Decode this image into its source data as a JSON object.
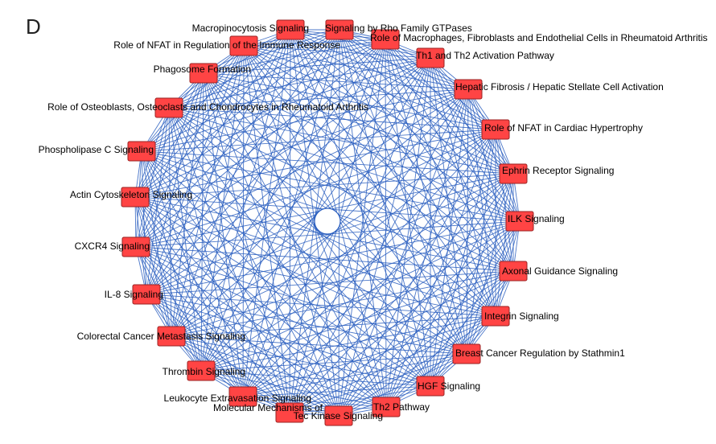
{
  "figure": {
    "panel_letter": "D"
  },
  "colors": {
    "node_fill": "#ff4444",
    "node_stroke": "#9a2222",
    "edge": "#2b5fbf"
  },
  "nodes": [
    {
      "id": "n0",
      "label": "Signaling by Rho Family GTPases"
    },
    {
      "id": "n1",
      "label": "Role of Macrophages, Fibroblasts and Endothelial Cells in Rheumatoid Arthritis"
    },
    {
      "id": "n2",
      "label": "Th1 and Th2 Activation Pathway"
    },
    {
      "id": "n3",
      "label": "Hepatic Fibrosis / Hepatic Stellate Cell Activation"
    },
    {
      "id": "n4",
      "label": "Role of NFAT in Cardiac Hypertrophy"
    },
    {
      "id": "n5",
      "label": "Ephrin Receptor Signaling"
    },
    {
      "id": "n6",
      "label": "ILK Signaling"
    },
    {
      "id": "n7",
      "label": "Axonal Guidance Signaling"
    },
    {
      "id": "n8",
      "label": "Integrin Signaling"
    },
    {
      "id": "n9",
      "label": "Breast Cancer Regulation by Stathmin1"
    },
    {
      "id": "n10",
      "label": "HGF Signaling"
    },
    {
      "id": "n11",
      "label": "Th2 Pathway"
    },
    {
      "id": "n12",
      "label": "Tec Kinase Signaling"
    },
    {
      "id": "n13",
      "label": "Molecular Mechanisms of"
    },
    {
      "id": "n14",
      "label": "Leukocyte Extravasation Signaling"
    },
    {
      "id": "n15",
      "label": "Thrombin Signaling"
    },
    {
      "id": "n16",
      "label": "Colorectal Cancer Metastasis Signaling"
    },
    {
      "id": "n17",
      "label": "IL-8 Signaling"
    },
    {
      "id": "n18",
      "label": "CXCR4 Signaling"
    },
    {
      "id": "n19",
      "label": "Actin Cytoskeleton Signaling"
    },
    {
      "id": "n20",
      "label": "Phospholipase C Signaling"
    },
    {
      "id": "n21",
      "label": "Role of Osteoblasts, Osteoclasts and Chondrocytes in Rheumatoid Arthritis"
    },
    {
      "id": "n22",
      "label": "Phagosome Formation"
    },
    {
      "id": "n23",
      "label": "Role of NFAT in Regulation of the Immune Response"
    },
    {
      "id": "n24",
      "label": "Macropinocytosis Signaling"
    }
  ]
}
